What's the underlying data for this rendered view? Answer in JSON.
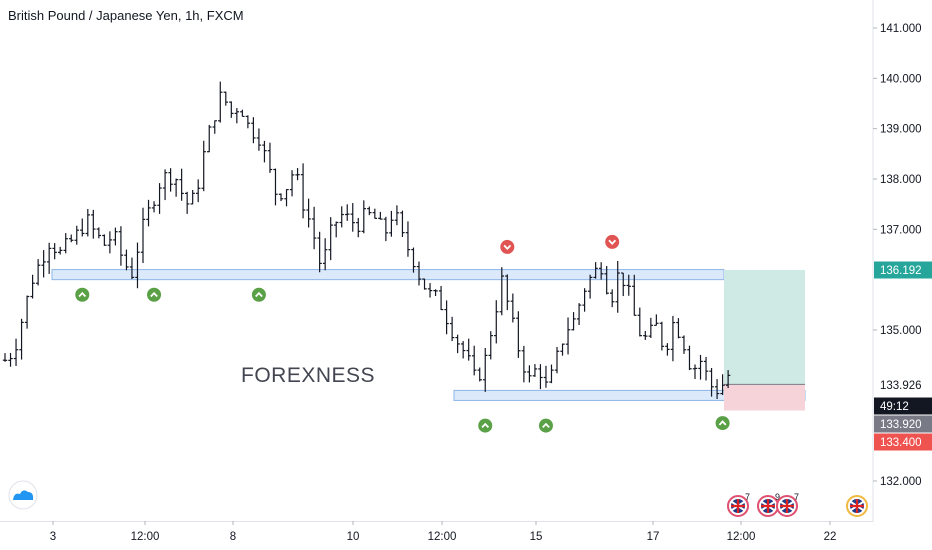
{
  "header": {
    "title": "British Pound / Japanese Yen, 1h, FXCM"
  },
  "watermark": "FOREXNESS",
  "colors": {
    "zone_fill": "#dbe9fb",
    "zone_stroke": "#8fb6e8",
    "target_fill": "#cfe9e4",
    "stop_fill": "#f6d3d8",
    "up_signal": "#5aa046",
    "down_signal": "#e05454",
    "price_badge": "#131722",
    "target_badge": "#26a69a",
    "stop_badge": "#ef5350",
    "timer_badge": "#787b86"
  },
  "chart_data": {
    "type": "bar",
    "instrument": "British Pound / Japanese Yen",
    "timeframe": "1h",
    "source": "FXCM",
    "ylim": [
      131.2,
      141.4
    ],
    "y_ticks": [
      "141.000",
      "140.000",
      "139.000",
      "138.000",
      "137.000",
      "135.000",
      "132.000"
    ],
    "x_ticks": [
      "3",
      "12:00",
      "8",
      "10",
      "12:00",
      "15",
      "17",
      "12:00",
      "22"
    ],
    "price_path": [
      134.4,
      134.6,
      135.3,
      136.0,
      136.4,
      136.8,
      136.5,
      136.7,
      136.9,
      137.2,
      136.9,
      136.7,
      136.9,
      136.4,
      136.1,
      136.9,
      137.4,
      137.9,
      138.1,
      138.0,
      137.5,
      137.6,
      138.5,
      139.2,
      139.7,
      139.3,
      139.5,
      139.0,
      138.9,
      138.3,
      137.7,
      137.8,
      138.2,
      137.5,
      137.0,
      136.2,
      136.9,
      137.3,
      137.2,
      137.1,
      137.3,
      137.2,
      136.9,
      137.4,
      136.8,
      136.5,
      136.0,
      135.7,
      135.6,
      135.2,
      134.8,
      134.5,
      134.0,
      134.3,
      135.2,
      136.0,
      135.2,
      134.5,
      134.0,
      134.3,
      133.8,
      134.4,
      135.0,
      135.2,
      135.8,
      136.1,
      136.3,
      135.6,
      136.2,
      135.7,
      135.0,
      134.8,
      135.1,
      134.6,
      135.2,
      134.8,
      134.2,
      134.4,
      133.9,
      133.8,
      134.1
    ],
    "support_zones": [
      {
        "from": 136.0,
        "to": 136.2
      },
      {
        "from": 133.6,
        "to": 133.8
      }
    ],
    "position": {
      "entry": 133.92,
      "target": 136.192,
      "stop": 133.4
    },
    "price_labels": {
      "last": "133.926",
      "timer": "49:12",
      "entry": "133.920",
      "target": "136.192",
      "stop": "133.400"
    },
    "signals_up": [
      {
        "bar": 14,
        "price": 135.7
      },
      {
        "bar": 27,
        "price": 135.7
      },
      {
        "bar": 46,
        "price": 135.7
      },
      {
        "bar": 87,
        "price": 133.1
      },
      {
        "bar": 98,
        "price": 133.1
      },
      {
        "bar": 130,
        "price": 133.15
      }
    ],
    "signals_down": [
      {
        "bar": 91,
        "price": 136.65
      },
      {
        "bar": 110,
        "price": 136.75
      }
    ],
    "events": [
      {
        "count": "7"
      },
      {
        "count": "9"
      },
      {
        "count": "7"
      },
      {
        "count": ""
      }
    ]
  }
}
